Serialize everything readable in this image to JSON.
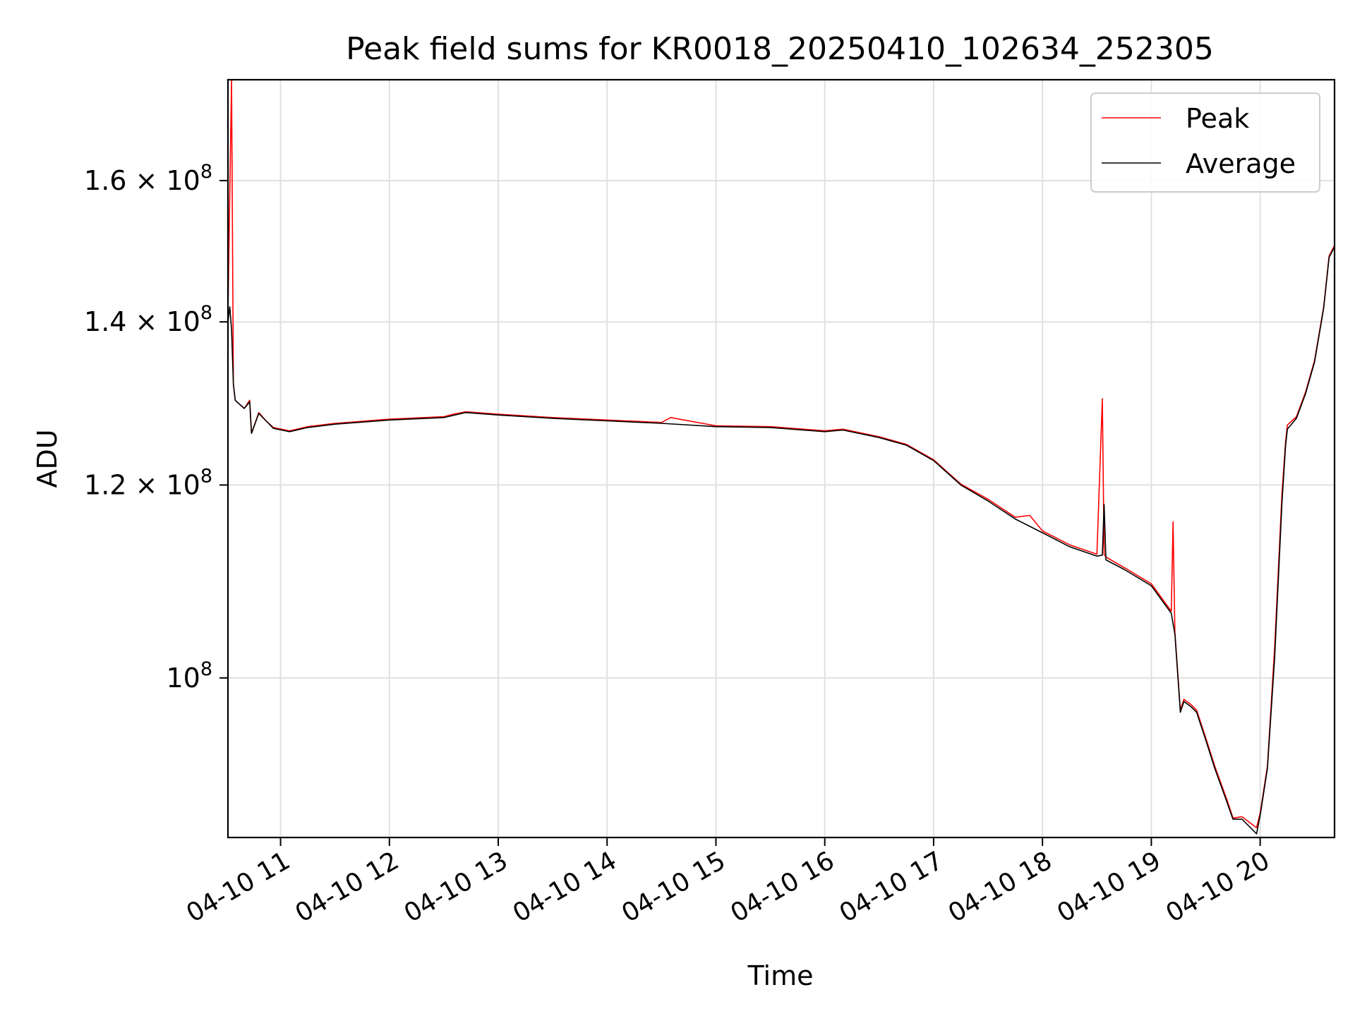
{
  "chart_data": {
    "type": "line",
    "title": "Peak field sums for KR0018_20250410_102634_252305",
    "xlabel": "Time",
    "ylabel": "ADU",
    "x_scale": "time",
    "y_scale": "log",
    "xlim": [
      "2025-04-10 10:31",
      "2025-04-10 20:41"
    ],
    "ylim": [
      86000000,
      176000000
    ],
    "grid": true,
    "legend_position": "top-right",
    "x_ticks": [
      {
        "label": "04-10 11",
        "value": "2025-04-10 11:00"
      },
      {
        "label": "04-10 12",
        "value": "2025-04-10 12:00"
      },
      {
        "label": "04-10 13",
        "value": "2025-04-10 13:00"
      },
      {
        "label": "04-10 14",
        "value": "2025-04-10 14:00"
      },
      {
        "label": "04-10 15",
        "value": "2025-04-10 15:00"
      },
      {
        "label": "04-10 16",
        "value": "2025-04-10 16:00"
      },
      {
        "label": "04-10 17",
        "value": "2025-04-10 17:00"
      },
      {
        "label": "04-10 18",
        "value": "2025-04-10 18:00"
      },
      {
        "label": "04-10 19",
        "value": "2025-04-10 19:00"
      },
      {
        "label": "04-10 20",
        "value": "2025-04-10 20:00"
      }
    ],
    "y_ticks": [
      {
        "mantissa": "10",
        "exponent": "8",
        "value": 100000000
      },
      {
        "mantissa": "1.2 × 10",
        "exponent": "8",
        "value": 120000000
      },
      {
        "mantissa": "1.4 × 10",
        "exponent": "8",
        "value": 140000000
      },
      {
        "mantissa": "1.6 × 10",
        "exponent": "8",
        "value": 160000000
      }
    ],
    "series": [
      {
        "name": "Peak",
        "color": "#ff0000",
        "x": [
          "2025-04-10 10:31",
          "2025-04-10 10:33",
          "2025-04-10 10:34",
          "2025-04-10 10:35",
          "2025-04-10 10:40",
          "2025-04-10 10:43",
          "2025-04-10 10:44",
          "2025-04-10 10:48",
          "2025-04-10 10:52",
          "2025-04-10 10:56",
          "2025-04-10 11:05",
          "2025-04-10 11:15",
          "2025-04-10 11:30",
          "2025-04-10 12:00",
          "2025-04-10 12:30",
          "2025-04-10 12:35",
          "2025-04-10 12:42",
          "2025-04-10 13:00",
          "2025-04-10 13:30",
          "2025-04-10 14:00",
          "2025-04-10 14:30",
          "2025-04-10 14:35",
          "2025-04-10 15:00",
          "2025-04-10 15:30",
          "2025-04-10 16:00",
          "2025-04-10 16:10",
          "2025-04-10 16:30",
          "2025-04-10 16:45",
          "2025-04-10 17:00",
          "2025-04-10 17:15",
          "2025-04-10 17:30",
          "2025-04-10 17:45",
          "2025-04-10 17:53",
          "2025-04-10 18:00",
          "2025-04-10 18:15",
          "2025-04-10 18:30",
          "2025-04-10 18:33",
          "2025-04-10 18:34",
          "2025-04-10 18:35",
          "2025-04-10 18:45",
          "2025-04-10 19:00",
          "2025-04-10 19:11",
          "2025-04-10 19:12",
          "2025-04-10 19:13",
          "2025-04-10 19:15",
          "2025-04-10 19:16",
          "2025-04-10 19:18",
          "2025-04-10 19:22",
          "2025-04-10 19:25",
          "2025-04-10 19:30",
          "2025-04-10 19:35",
          "2025-04-10 19:42",
          "2025-04-10 19:45",
          "2025-04-10 19:50",
          "2025-04-10 19:58",
          "2025-04-10 20:00",
          "2025-04-10 20:04",
          "2025-04-10 20:08",
          "2025-04-10 20:12",
          "2025-04-10 20:14",
          "2025-04-10 20:15",
          "2025-04-10 20:20",
          "2025-04-10 20:25",
          "2025-04-10 20:30",
          "2025-04-10 20:35",
          "2025-04-10 20:38",
          "2025-04-10 20:41"
        ],
        "y": [
          141000000,
          176000000,
          132000000,
          130000000,
          129000000,
          130000000,
          126000000,
          128500000,
          127500000,
          126700000,
          126300000,
          126800000,
          127200000,
          127700000,
          128000000,
          128300000,
          128600000,
          128300000,
          127900000,
          127600000,
          127300000,
          127900000,
          126900000,
          126800000,
          126300000,
          126500000,
          125600000,
          124700000,
          122900000,
          120100000,
          118400000,
          116400000,
          116600000,
          114900000,
          113400000,
          112400000,
          130200000,
          112400000,
          112100000,
          111000000,
          109300000,
          106500000,
          115900000,
          104400000,
          99500000,
          97000000,
          98000000,
          97500000,
          97000000,
          94500000,
          92000000,
          89000000,
          87600000,
          87700000,
          86800000,
          88000000,
          92000000,
          103000000,
          119000000,
          125000000,
          127000000,
          128000000,
          131000000,
          135000000,
          142000000,
          149000000,
          150500000
        ]
      },
      {
        "name": "Average",
        "color": "#000000",
        "x": [
          "2025-04-10 10:31",
          "2025-04-10 10:32",
          "2025-04-10 10:33",
          "2025-04-10 10:34",
          "2025-04-10 10:35",
          "2025-04-10 10:40",
          "2025-04-10 10:43",
          "2025-04-10 10:44",
          "2025-04-10 10:48",
          "2025-04-10 10:52",
          "2025-04-10 10:56",
          "2025-04-10 11:05",
          "2025-04-10 11:15",
          "2025-04-10 11:30",
          "2025-04-10 12:00",
          "2025-04-10 12:30",
          "2025-04-10 12:42",
          "2025-04-10 13:00",
          "2025-04-10 13:30",
          "2025-04-10 14:00",
          "2025-04-10 14:30",
          "2025-04-10 15:00",
          "2025-04-10 15:30",
          "2025-04-10 16:00",
          "2025-04-10 16:10",
          "2025-04-10 16:30",
          "2025-04-10 16:45",
          "2025-04-10 17:00",
          "2025-04-10 17:15",
          "2025-04-10 17:30",
          "2025-04-10 17:45",
          "2025-04-10 18:00",
          "2025-04-10 18:15",
          "2025-04-10 18:30",
          "2025-04-10 18:33",
          "2025-04-10 18:34",
          "2025-04-10 18:35",
          "2025-04-10 18:45",
          "2025-04-10 19:00",
          "2025-04-10 19:11",
          "2025-04-10 19:13",
          "2025-04-10 19:15",
          "2025-04-10 19:16",
          "2025-04-10 19:18",
          "2025-04-10 19:22",
          "2025-04-10 19:25",
          "2025-04-10 19:30",
          "2025-04-10 19:35",
          "2025-04-10 19:42",
          "2025-04-10 19:45",
          "2025-04-10 19:50",
          "2025-04-10 19:58",
          "2025-04-10 20:00",
          "2025-04-10 20:04",
          "2025-04-10 20:08",
          "2025-04-10 20:12",
          "2025-04-10 20:14",
          "2025-04-10 20:15",
          "2025-04-10 20:20",
          "2025-04-10 20:25",
          "2025-04-10 20:30",
          "2025-04-10 20:35",
          "2025-04-10 20:38",
          "2025-04-10 20:41"
        ],
        "y": [
          140000000,
          142000000,
          139000000,
          132000000,
          130000000,
          129000000,
          129800000,
          126000000,
          128400000,
          127500000,
          126600000,
          126200000,
          126700000,
          127100000,
          127600000,
          127900000,
          128500000,
          128200000,
          127800000,
          127500000,
          127200000,
          126800000,
          126700000,
          126200000,
          126400000,
          125500000,
          124600000,
          122800000,
          120000000,
          118200000,
          116200000,
          114700000,
          113200000,
          112200000,
          112300000,
          117800000,
          111800000,
          110800000,
          109100000,
          106300000,
          104200000,
          99300000,
          96800000,
          97800000,
          97300000,
          96800000,
          94300000,
          91800000,
          88800000,
          87500000,
          87500000,
          86300000,
          87800000,
          91800000,
          102000000,
          118000000,
          124500000,
          126500000,
          127800000,
          130800000,
          134800000,
          141800000,
          148800000,
          150300000
        ]
      }
    ]
  }
}
